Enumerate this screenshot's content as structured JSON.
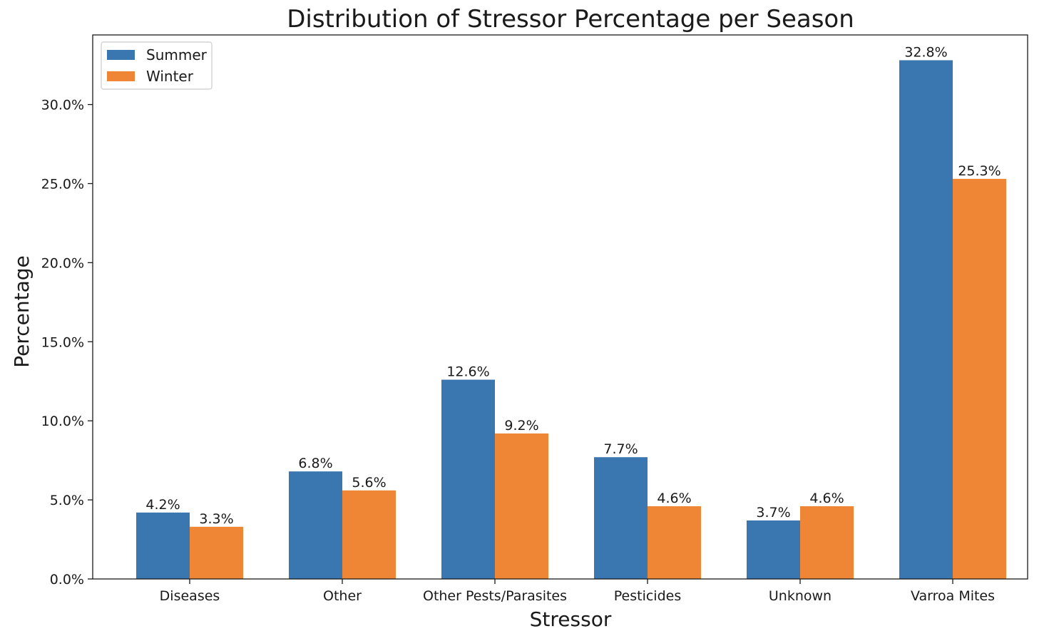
{
  "chart_data": {
    "type": "bar",
    "title": "Distribution of Stressor Percentage per Season",
    "xlabel": "Stressor",
    "ylabel": "Percentage",
    "categories": [
      "Diseases",
      "Other",
      "Other Pests/Parasites",
      "Pesticides",
      "Unknown",
      "Varroa Mites"
    ],
    "series": [
      {
        "name": "Summer",
        "color": "#3a76af",
        "values": [
          4.2,
          6.8,
          12.6,
          7.7,
          3.7,
          32.8
        ],
        "labels": [
          "4.2%",
          "6.8%",
          "12.6%",
          "7.7%",
          "3.7%",
          "32.8%"
        ]
      },
      {
        "name": "Winter",
        "color": "#ef8636",
        "values": [
          3.3,
          5.6,
          9.2,
          4.6,
          4.6,
          25.3
        ],
        "labels": [
          "3.3%",
          "5.6%",
          "9.2%",
          "4.6%",
          "4.6%",
          "25.3%"
        ]
      }
    ],
    "ylim": [
      0,
      34.4
    ],
    "yticks": [
      0,
      5,
      10,
      15,
      20,
      25,
      30
    ],
    "ytick_labels": [
      "0.0%",
      "5.0%",
      "10.0%",
      "15.0%",
      "20.0%",
      "25.0%",
      "30.0%"
    ],
    "grid": false,
    "legend_position": "top-left"
  }
}
